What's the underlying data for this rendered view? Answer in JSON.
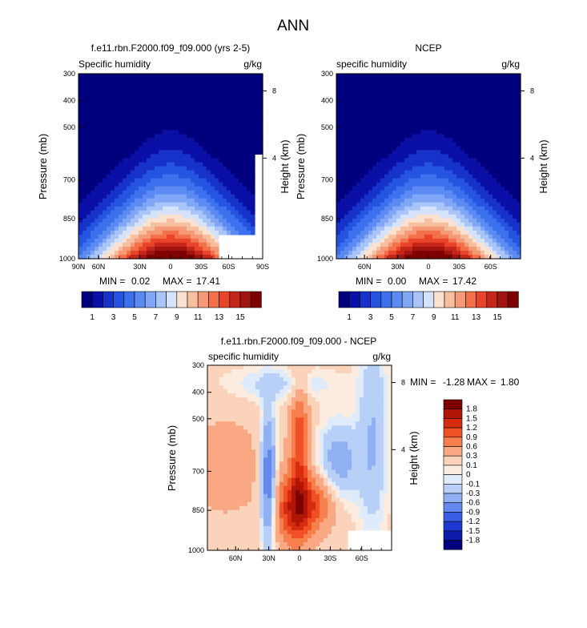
{
  "page_title": "ANN",
  "chart_data": [
    {
      "type": "heatmap",
      "id": "model",
      "title": "f.e11.rbn.F2000.f09_f09.000 (yrs 2-5)",
      "left_label": "Specific humidity",
      "right_label": "g/kg",
      "ylabel": "Pressure (mb)",
      "ylabel_right": "Height (km)",
      "y_ticks": [
        "300",
        "400",
        "500",
        "700",
        "850",
        "1000"
      ],
      "y_right_ticks": [
        "8",
        "4"
      ],
      "x_ticks": [
        "90N",
        "60N",
        "30N",
        "0",
        "30S",
        "60S",
        "90S"
      ],
      "stats": {
        "min_label": "MIN =",
        "min": "0.02",
        "max_label": "MAX =",
        "max": "17.41"
      },
      "colorbar_labels": [
        "1",
        "3",
        "5",
        "7",
        "9",
        "11",
        "13",
        "15"
      ],
      "peak": 17.41
    },
    {
      "type": "heatmap",
      "id": "obs",
      "title": "NCEP",
      "left_label": "specific humidity",
      "right_label": "g/kg",
      "ylabel": "Pressure (mb)",
      "ylabel_right": "Height (km)",
      "y_ticks": [
        "300",
        "400",
        "500",
        "700",
        "850",
        "1000"
      ],
      "y_right_ticks": [
        "8",
        "4"
      ],
      "x_ticks": [
        "60N",
        "30N",
        "0",
        "30S",
        "60S"
      ],
      "stats": {
        "min_label": "MIN =",
        "min": "0.00",
        "max_label": "MAX =",
        "max": "17.42"
      },
      "colorbar_labels": [
        "1",
        "3",
        "5",
        "7",
        "9",
        "11",
        "13",
        "15"
      ],
      "peak": 17.42
    },
    {
      "type": "heatmap",
      "id": "diff",
      "title": "f.e11.rbn.F2000.f09_f09.000 - NCEP",
      "left_label": "specific humidity",
      "right_label": "g/kg",
      "ylabel": "Pressure (mb)",
      "ylabel_right": "Height (km)",
      "y_ticks": [
        "300",
        "400",
        "500",
        "700",
        "850",
        "1000"
      ],
      "y_right_ticks": [
        "8",
        "4"
      ],
      "x_ticks": [
        "60N",
        "30N",
        "0",
        "30S",
        "60S"
      ],
      "stats": {
        "min_label": "MIN =",
        "min": "-1.28",
        "max_label": "MAX =",
        "max": "1.80"
      },
      "colorbar_labels": [
        "1.8",
        "1.5",
        "1.2",
        "0.9",
        "0.6",
        "0.3",
        "0.1",
        "0",
        "-0.1",
        "-0.3",
        "-0.6",
        "-0.9",
        "-1.2",
        "-1.5",
        "-1.8"
      ]
    }
  ],
  "colors": {
    "humidity_scale": [
      "#00007f",
      "#0a0fa6",
      "#1632c8",
      "#2454e0",
      "#3c70ec",
      "#5b8af2",
      "#80a6f6",
      "#a9c4f8",
      "#d4e2fa",
      "#fbe1cf",
      "#f7bfa0",
      "#f59a76",
      "#f2704a",
      "#e8442a",
      "#c6251a",
      "#a11410",
      "#7f0000"
    ],
    "diff_scale": [
      "#7f0000",
      "#b01506",
      "#d72b10",
      "#ef5024",
      "#f77f4d",
      "#f9a883",
      "#fbd3bb",
      "#fbecdf",
      "#dfeafb",
      "#b8cff8",
      "#8fb1f4",
      "#6389ef",
      "#3a5fe6",
      "#1d3ad0",
      "#0b1aa8",
      "#00007f"
    ]
  }
}
